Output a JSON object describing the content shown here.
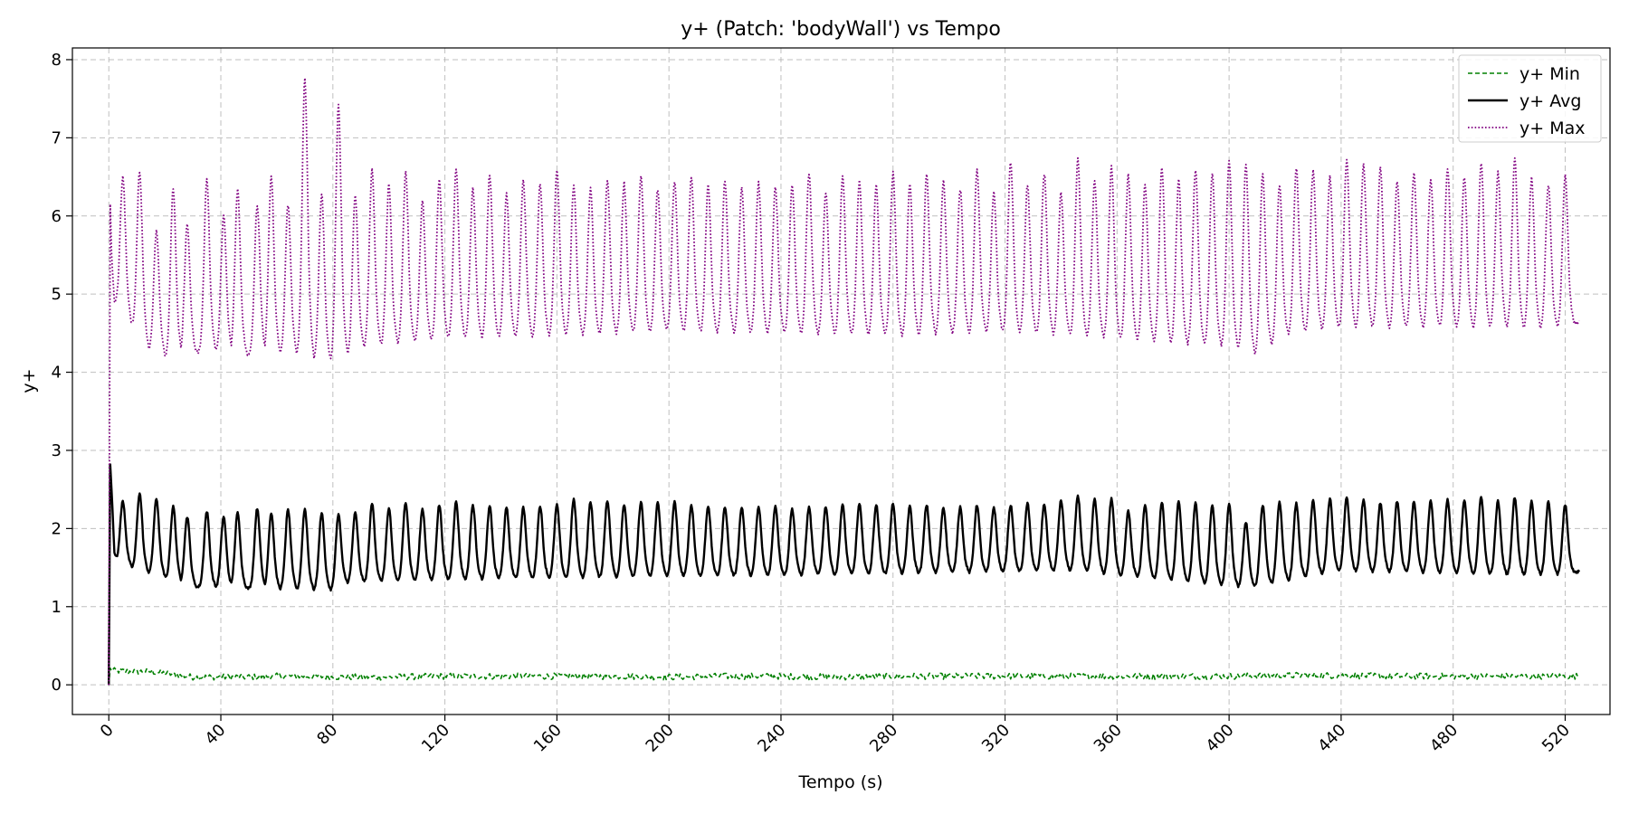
{
  "chart_data": {
    "type": "line",
    "title": "y+ (Patch: 'bodyWall') vs Tempo",
    "xlabel": "Tempo (s)",
    "ylabel": "y+",
    "xlim": [
      -13,
      536
    ],
    "ylim": [
      -0.38,
      8.15
    ],
    "xticks": [
      0,
      40,
      80,
      120,
      160,
      200,
      240,
      280,
      320,
      360,
      400,
      440,
      480,
      520
    ],
    "xtick_labels": [
      "0",
      "40",
      "80",
      "120",
      "160",
      "200",
      "240",
      "280",
      "320",
      "360",
      "400",
      "440",
      "480",
      "520"
    ],
    "yticks": [
      0,
      1,
      2,
      3,
      4,
      5,
      6,
      7,
      8
    ],
    "ytick_labels": [
      "0",
      "1",
      "2",
      "3",
      "4",
      "5",
      "6",
      "7",
      "8"
    ],
    "grid": true,
    "legend_position": "top-right",
    "series": [
      {
        "name": "y+ Min",
        "color": "#008000",
        "style": "dashed",
        "x": [
          0,
          0.5,
          2,
          8,
          15,
          20,
          25,
          30,
          40,
          50,
          60,
          70,
          80,
          90,
          100,
          120,
          140,
          160,
          180,
          200,
          220,
          240,
          260,
          280,
          300,
          320,
          340,
          360,
          380,
          400,
          420,
          440,
          460,
          480,
          500,
          520,
          525
        ],
        "y": [
          0.0,
          0.2,
          0.18,
          0.17,
          0.17,
          0.15,
          0.12,
          0.1,
          0.1,
          0.1,
          0.11,
          0.11,
          0.1,
          0.1,
          0.1,
          0.11,
          0.11,
          0.11,
          0.11,
          0.1,
          0.11,
          0.11,
          0.1,
          0.11,
          0.11,
          0.11,
          0.11,
          0.11,
          0.11,
          0.11,
          0.12,
          0.12,
          0.11,
          0.11,
          0.11,
          0.11,
          0.11
        ]
      },
      {
        "name": "y+ Avg",
        "color": "#000000",
        "style": "solid",
        "x": [
          0,
          0.5,
          1,
          2,
          3,
          30,
          80,
          84,
          140,
          260,
          345,
          400,
          410,
          440,
          500,
          520,
          525
        ],
        "y": [
          0.0,
          2.82,
          2.5,
          1.7,
          1.55,
          1.25,
          1.2,
          1.3,
          1.35,
          1.4,
          1.45,
          1.25,
          1.25,
          1.45,
          1.4,
          1.4,
          1.45
        ],
        "peaks_x": [
          5,
          11,
          17,
          23,
          28,
          35,
          41,
          46,
          53,
          58,
          64,
          70,
          76,
          82,
          88,
          94,
          100,
          106,
          112,
          118,
          124,
          130,
          136,
          142,
          148,
          154,
          160,
          166,
          172,
          178,
          184,
          190,
          196,
          202,
          208,
          214,
          220,
          226,
          232,
          238,
          244,
          250,
          256,
          262,
          268,
          274,
          280,
          286,
          292,
          298,
          304,
          310,
          316,
          322,
          328,
          334,
          340,
          346,
          352,
          358,
          364,
          370,
          376,
          382,
          388,
          394,
          400,
          406,
          412,
          418,
          424,
          430,
          436,
          442,
          448,
          454,
          460,
          466,
          472,
          478,
          484,
          490,
          496,
          502,
          508,
          514,
          520
        ],
        "peaks_y": [
          2.35,
          2.45,
          2.38,
          2.28,
          2.15,
          2.22,
          2.15,
          2.2,
          2.26,
          2.2,
          2.24,
          2.25,
          2.2,
          2.18,
          2.2,
          2.32,
          2.25,
          2.34,
          2.25,
          2.3,
          2.34,
          2.3,
          2.28,
          2.26,
          2.27,
          2.29,
          2.3,
          2.37,
          2.34,
          2.36,
          2.31,
          2.34,
          2.33,
          2.34,
          2.3,
          2.29,
          2.28,
          2.27,
          2.27,
          2.29,
          2.25,
          2.27,
          2.28,
          2.3,
          2.31,
          2.3,
          2.32,
          2.28,
          2.3,
          2.27,
          2.28,
          2.3,
          2.27,
          2.3,
          2.32,
          2.31,
          2.36,
          2.42,
          2.38,
          2.38,
          2.22,
          2.3,
          2.33,
          2.34,
          2.33,
          2.3,
          2.31,
          2.08,
          2.3,
          2.34,
          2.32,
          2.36,
          2.38,
          2.4,
          2.37,
          2.33,
          2.35,
          2.34,
          2.36,
          2.37,
          2.36,
          2.4,
          2.35,
          2.4,
          2.35,
          2.34,
          2.3
        ]
      },
      {
        "name": "y+ Max",
        "color": "#800080",
        "style": "dotted",
        "x": [
          0,
          0.5,
          1,
          2,
          15,
          22,
          30,
          70,
          80,
          90,
          120,
          200,
          280,
          320,
          360,
          400,
          410,
          420,
          440,
          520,
          525
        ],
        "y": [
          0.0,
          6.15,
          5.5,
          4.9,
          4.25,
          4.15,
          4.25,
          4.2,
          4.1,
          4.3,
          4.4,
          4.5,
          4.45,
          4.5,
          4.4,
          4.3,
          4.2,
          4.45,
          4.55,
          4.55,
          4.65
        ],
        "peaks_x": [
          5,
          11,
          17,
          23,
          28,
          35,
          41,
          46,
          53,
          58,
          64,
          70,
          76,
          82,
          88,
          94,
          100,
          106,
          112,
          118,
          124,
          130,
          136,
          142,
          148,
          154,
          160,
          166,
          172,
          178,
          184,
          190,
          196,
          202,
          208,
          214,
          220,
          226,
          232,
          238,
          244,
          250,
          256,
          262,
          268,
          274,
          280,
          286,
          292,
          298,
          304,
          310,
          316,
          322,
          328,
          334,
          340,
          346,
          352,
          358,
          364,
          370,
          376,
          382,
          388,
          394,
          400,
          406,
          412,
          418,
          424,
          430,
          436,
          442,
          448,
          454,
          460,
          466,
          472,
          478,
          484,
          490,
          496,
          502,
          508,
          514,
          520
        ],
        "peaks_y": [
          6.5,
          6.58,
          5.8,
          6.35,
          5.9,
          6.48,
          6.0,
          6.33,
          6.15,
          6.52,
          6.15,
          7.75,
          6.28,
          7.42,
          6.25,
          6.6,
          6.4,
          6.55,
          6.18,
          6.45,
          6.6,
          6.35,
          6.52,
          6.28,
          6.45,
          6.4,
          6.58,
          6.4,
          6.35,
          6.45,
          6.42,
          6.52,
          6.35,
          6.45,
          6.5,
          6.38,
          6.45,
          6.35,
          6.42,
          6.38,
          6.4,
          6.55,
          6.3,
          6.5,
          6.45,
          6.38,
          6.55,
          6.4,
          6.52,
          6.45,
          6.35,
          6.6,
          6.3,
          6.7,
          6.4,
          6.55,
          6.3,
          6.72,
          6.45,
          6.62,
          6.52,
          6.4,
          6.62,
          6.45,
          6.6,
          6.55,
          6.72,
          6.65,
          6.55,
          6.4,
          6.62,
          6.58,
          6.5,
          6.72,
          6.65,
          6.62,
          6.45,
          6.55,
          6.48,
          6.62,
          6.5,
          6.68,
          6.55,
          6.72,
          6.48,
          6.4,
          6.52
        ]
      }
    ]
  }
}
